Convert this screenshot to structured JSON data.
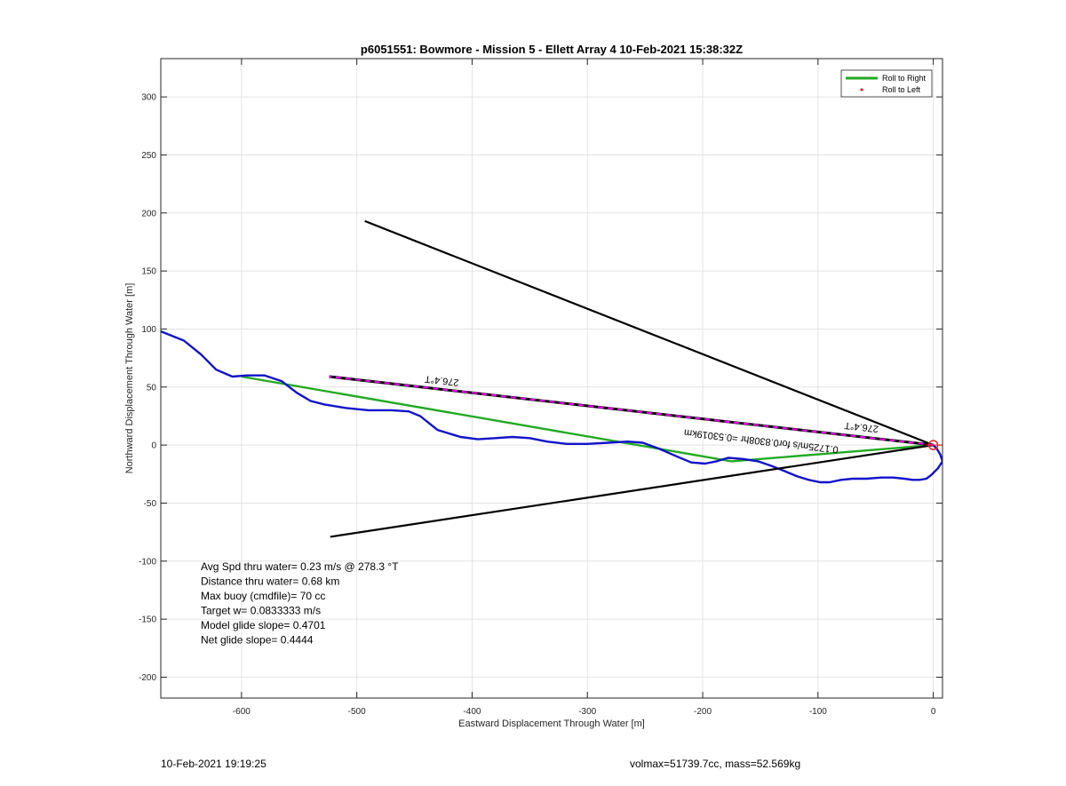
{
  "chart_data": {
    "type": "line",
    "title": "p6051551: Bowmore - Mission 5 - Ellett Array 4 10-Feb-2021 15:38:32Z",
    "xlabel": "Eastward Displacement Through Water [m]",
    "ylabel": "Northward Displacement Through Water [m]",
    "xlim": [
      -670,
      8
    ],
    "ylim": [
      -218,
      333
    ],
    "xticks": [
      -600,
      -500,
      -400,
      -300,
      -200,
      -100,
      0
    ],
    "yticks": [
      -200,
      -150,
      -100,
      -50,
      0,
      50,
      100,
      150,
      200,
      250,
      300
    ],
    "grid": true,
    "legend_position": "top-right",
    "legend": [
      {
        "label": "Roll to Right",
        "color": "#22aa22",
        "marker": "line"
      },
      {
        "label": "Roll to Left",
        "color": "#ff0000",
        "marker": "dot"
      }
    ],
    "series": [
      {
        "name": "Roll to Right",
        "color": "#22aa22",
        "style": "line",
        "x": [
          0,
          -175,
          -600
        ],
        "y": [
          0,
          -14,
          59
        ]
      },
      {
        "color": "#1111cc",
        "style": "line",
        "x": [
          -670,
          -650,
          -635,
          -622,
          -608,
          -595,
          -580,
          -565,
          -552,
          -540,
          -528,
          -510,
          -490,
          -470,
          -455,
          -445,
          -430,
          -410,
          -395,
          -380,
          -365,
          -350,
          -335,
          -318,
          -300,
          -282,
          -265,
          -252,
          -238,
          -222,
          -210,
          -198,
          -188,
          -178,
          -165,
          -152,
          -140,
          -130,
          -118,
          -108,
          -98,
          -90,
          -80,
          -70,
          -58,
          -45,
          -35,
          -25,
          -18,
          -12,
          -6,
          -2,
          4,
          8,
          6,
          3,
          0
        ],
        "y": [
          98,
          90,
          78,
          65,
          59,
          60,
          60,
          55,
          45,
          38,
          35,
          32,
          30,
          30,
          29,
          25,
          13,
          7,
          5,
          6,
          7,
          6,
          3,
          1,
          1,
          2,
          3,
          2,
          -3,
          -10,
          -15,
          -16,
          -14,
          -11,
          -12,
          -14,
          -18,
          -22,
          -27,
          -30,
          -32,
          -32,
          -30,
          -29,
          -29,
          -28,
          -28,
          -29,
          -30,
          -30,
          -29,
          -26,
          -20,
          -14,
          -8,
          -3,
          0
        ]
      },
      {
        "style": "line",
        "color": "#000000",
        "x": [
          0,
          -493
        ],
        "y": [
          0,
          193
        ]
      },
      {
        "style": "line",
        "color": "#000000",
        "x": [
          0,
          -523
        ],
        "y": [
          0,
          -79
        ]
      },
      {
        "style": "dashed",
        "color": "#ee00ee",
        "x": [
          0,
          -524
        ],
        "y": [
          0,
          59
        ]
      }
    ],
    "annotations": [
      {
        "text": "276.4°T",
        "x": -426,
        "y": 58,
        "color": "#000000"
      },
      {
        "text": "276.4°T",
        "x": -62,
        "y": 18,
        "color": "#000000"
      },
      {
        "text": "0.1725m/s for0.8308hr =0.53019km",
        "x": -149,
        "y": 6,
        "color": "#000000"
      }
    ],
    "start_marker": {
      "x": 0,
      "y": 0,
      "color": "#ee2222"
    },
    "stats": [
      "Avg Spd thru water=  0.23 m/s @ 278.3 °T",
      "Distance thru water=  0.68 km",
      "Max buoy (cmdfile)= 70 cc",
      "Target w= 0.0833333 m/s",
      "Model glide slope= 0.4701",
      "Net glide slope= 0.4444"
    ]
  },
  "footer": {
    "timestamp": "10-Feb-2021 19:19:25",
    "summary": "volmax=51739.7cc, mass=52.569kg"
  }
}
